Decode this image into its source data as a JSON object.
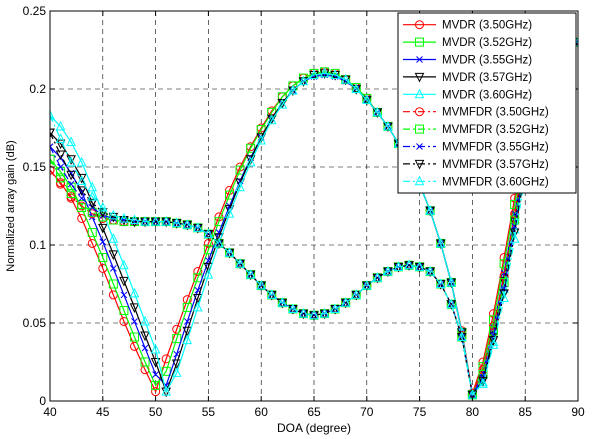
{
  "chart_data": {
    "type": "line",
    "title": "",
    "xlabel": "DOA (degree)",
    "ylabel": "Normalized array gain (dB)",
    "xlim": [
      40,
      90
    ],
    "ylim": [
      0,
      0.25
    ],
    "xticks": [
      40,
      45,
      50,
      55,
      60,
      65,
      70,
      75,
      80,
      85,
      90
    ],
    "yticks": [
      0,
      0.05,
      0.1,
      0.15,
      0.2,
      0.25
    ],
    "xtick_labels": [
      "40",
      "45",
      "50",
      "55",
      "60",
      "65",
      "70",
      "75",
      "80",
      "85",
      "90"
    ],
    "ytick_labels": [
      "0",
      "0.05",
      "0.1",
      "0.15",
      "0.2",
      "0.25"
    ],
    "grid": true,
    "grid_style": "dashed",
    "legend_position": "top-right",
    "series": [
      {
        "name": "MVDR (3.50GHz)",
        "color": "#ff0000",
        "marker": "circle",
        "linestyle": "solid",
        "x": [
          40,
          41,
          42,
          43,
          44,
          45,
          46,
          47,
          48,
          49,
          50,
          51,
          52,
          53,
          54,
          55,
          56,
          57,
          58,
          59,
          60,
          61,
          62,
          63,
          64,
          65,
          66,
          67,
          68,
          69,
          70,
          71,
          72,
          73,
          74,
          75,
          76,
          77,
          78,
          79,
          80,
          81,
          82,
          83,
          84,
          85,
          86
        ],
        "y": [
          0.148,
          0.14,
          0.13,
          0.117,
          0.101,
          0.085,
          0.068,
          0.051,
          0.035,
          0.02,
          0.006,
          0.027,
          0.046,
          0.065,
          0.083,
          0.101,
          0.118,
          0.135,
          0.15,
          0.163,
          0.175,
          0.186,
          0.195,
          0.202,
          0.207,
          0.21,
          0.211,
          0.21,
          0.206,
          0.201,
          0.194,
          0.185,
          0.176,
          0.165,
          0.153,
          0.139,
          0.122,
          0.101,
          0.076,
          0.045,
          0.005,
          0.025,
          0.056,
          0.092,
          0.13,
          0.17,
          0.215
        ]
      },
      {
        "name": "MVDR (3.52GHz)",
        "color": "#00ff00",
        "marker": "square",
        "linestyle": "solid",
        "x": [
          40,
          41,
          42,
          43,
          44,
          45,
          46,
          47,
          48,
          49,
          50,
          51,
          52,
          53,
          54,
          55,
          56,
          57,
          58,
          59,
          60,
          61,
          62,
          63,
          64,
          65,
          66,
          67,
          68,
          69,
          70,
          71,
          72,
          73,
          74,
          75,
          76,
          77,
          78,
          79,
          80,
          81,
          82,
          83,
          84,
          85,
          86
        ],
        "y": [
          0.155,
          0.147,
          0.137,
          0.124,
          0.108,
          0.092,
          0.075,
          0.058,
          0.041,
          0.025,
          0.01,
          0.019,
          0.04,
          0.06,
          0.079,
          0.097,
          0.115,
          0.132,
          0.148,
          0.162,
          0.174,
          0.185,
          0.195,
          0.202,
          0.207,
          0.21,
          0.211,
          0.21,
          0.206,
          0.201,
          0.194,
          0.185,
          0.176,
          0.165,
          0.153,
          0.139,
          0.122,
          0.101,
          0.076,
          0.044,
          0.004,
          0.022,
          0.052,
          0.088,
          0.126,
          0.166,
          0.21
        ]
      },
      {
        "name": "MVDR (3.55GHz)",
        "color": "#0000ff",
        "marker": "x",
        "linestyle": "solid",
        "x": [
          40,
          41,
          42,
          43,
          44,
          45,
          46,
          47,
          48,
          49,
          50,
          51,
          52,
          53,
          54,
          55,
          56,
          57,
          58,
          59,
          60,
          61,
          62,
          63,
          64,
          65,
          66,
          67,
          68,
          69,
          70,
          71,
          72,
          73,
          74,
          75,
          76,
          77,
          78,
          79,
          80,
          81,
          82,
          83,
          84,
          85,
          86
        ],
        "y": [
          0.163,
          0.156,
          0.146,
          0.134,
          0.118,
          0.102,
          0.085,
          0.068,
          0.051,
          0.034,
          0.017,
          0.01,
          0.03,
          0.051,
          0.071,
          0.09,
          0.108,
          0.125,
          0.141,
          0.156,
          0.169,
          0.181,
          0.191,
          0.199,
          0.205,
          0.208,
          0.209,
          0.208,
          0.205,
          0.2,
          0.193,
          0.185,
          0.176,
          0.165,
          0.153,
          0.139,
          0.122,
          0.101,
          0.076,
          0.044,
          0.004,
          0.018,
          0.047,
          0.082,
          0.12,
          0.16,
          0.205
        ]
      },
      {
        "name": "MVDR (3.57GHz)",
        "color": "#000000",
        "marker": "triangle-down",
        "linestyle": "solid",
        "x": [
          40,
          41,
          42,
          43,
          44,
          45,
          46,
          47,
          48,
          49,
          50,
          51,
          52,
          53,
          54,
          55,
          56,
          57,
          58,
          59,
          60,
          61,
          62,
          63,
          64,
          65,
          66,
          67,
          68,
          69,
          70,
          71,
          72,
          73,
          74,
          75,
          76,
          77,
          78,
          79,
          80,
          81,
          82,
          83,
          84,
          85,
          86
        ],
        "y": [
          0.172,
          0.165,
          0.155,
          0.143,
          0.127,
          0.111,
          0.094,
          0.077,
          0.06,
          0.042,
          0.025,
          0.006,
          0.024,
          0.045,
          0.066,
          0.086,
          0.105,
          0.123,
          0.14,
          0.155,
          0.169,
          0.181,
          0.191,
          0.199,
          0.205,
          0.209,
          0.21,
          0.209,
          0.206,
          0.2,
          0.193,
          0.185,
          0.176,
          0.165,
          0.153,
          0.139,
          0.122,
          0.101,
          0.076,
          0.044,
          0.004,
          0.014,
          0.042,
          0.077,
          0.115,
          0.155,
          0.2
        ]
      },
      {
        "name": "MVDR (3.60GHz)",
        "color": "#00ffff",
        "marker": "triangle-up",
        "linestyle": "solid",
        "x": [
          40,
          41,
          42,
          43,
          44,
          45,
          46,
          47,
          48,
          49,
          50,
          51,
          52,
          53,
          54,
          55,
          56,
          57,
          58,
          59,
          60,
          61,
          62,
          63,
          64,
          65,
          66,
          67,
          68,
          69,
          70,
          71,
          72,
          73,
          74,
          75,
          76,
          77,
          78,
          79,
          80,
          81,
          82,
          83,
          84,
          85,
          86
        ],
        "y": [
          0.183,
          0.176,
          0.166,
          0.153,
          0.137,
          0.121,
          0.104,
          0.087,
          0.069,
          0.051,
          0.033,
          0.006,
          0.018,
          0.039,
          0.06,
          0.081,
          0.101,
          0.12,
          0.137,
          0.153,
          0.167,
          0.18,
          0.19,
          0.199,
          0.205,
          0.209,
          0.21,
          0.209,
          0.206,
          0.2,
          0.193,
          0.185,
          0.176,
          0.165,
          0.153,
          0.139,
          0.122,
          0.101,
          0.076,
          0.044,
          0.004,
          0.012,
          0.038,
          0.072,
          0.11,
          0.15,
          0.195
        ]
      },
      {
        "name": "MVMFDR (3.50GHz)",
        "color": "#ff0000",
        "marker": "circle",
        "linestyle": "dashdot",
        "x": [
          40,
          41,
          42,
          43,
          44,
          45,
          46,
          47,
          48,
          49,
          50,
          51,
          52,
          53,
          54,
          55,
          56,
          57,
          58,
          59,
          60,
          61,
          62,
          63,
          64,
          65,
          66,
          67,
          68,
          69,
          70,
          71,
          72,
          73,
          74,
          75,
          76,
          77,
          78,
          79,
          80,
          81,
          82,
          83,
          84,
          85,
          86,
          87,
          88,
          89,
          90
        ],
        "y": [
          0.148,
          0.139,
          0.131,
          0.125,
          0.12,
          0.117,
          0.116,
          0.115,
          0.115,
          0.115,
          0.115,
          0.115,
          0.114,
          0.113,
          0.111,
          0.107,
          0.101,
          0.095,
          0.088,
          0.081,
          0.074,
          0.068,
          0.063,
          0.059,
          0.056,
          0.055,
          0.056,
          0.059,
          0.063,
          0.068,
          0.074,
          0.079,
          0.083,
          0.086,
          0.087,
          0.086,
          0.083,
          0.075,
          0.062,
          0.042,
          0.005,
          0.02,
          0.048,
          0.08,
          0.12,
          0.16,
          0.195,
          0.218,
          0.23,
          0.23,
          0.23
        ]
      },
      {
        "name": "MVMFDR (3.52GHz)",
        "color": "#00ff00",
        "marker": "square",
        "linestyle": "dashdot",
        "x": [
          40,
          41,
          42,
          43,
          44,
          45,
          46,
          47,
          48,
          49,
          50,
          51,
          52,
          53,
          54,
          55,
          56,
          57,
          58,
          59,
          60,
          61,
          62,
          63,
          64,
          65,
          66,
          67,
          68,
          69,
          70,
          71,
          72,
          73,
          74,
          75,
          76,
          77,
          78,
          79,
          80,
          81,
          82,
          83,
          84,
          85,
          86,
          87,
          88,
          89,
          90
        ],
        "y": [
          0.155,
          0.143,
          0.133,
          0.126,
          0.121,
          0.118,
          0.116,
          0.115,
          0.115,
          0.115,
          0.115,
          0.115,
          0.114,
          0.113,
          0.111,
          0.107,
          0.101,
          0.095,
          0.088,
          0.081,
          0.074,
          0.068,
          0.063,
          0.059,
          0.056,
          0.055,
          0.056,
          0.059,
          0.063,
          0.068,
          0.074,
          0.079,
          0.083,
          0.086,
          0.087,
          0.086,
          0.083,
          0.075,
          0.062,
          0.041,
          0.004,
          0.017,
          0.045,
          0.076,
          0.116,
          0.156,
          0.19,
          0.214,
          0.228,
          0.23,
          0.23
        ]
      },
      {
        "name": "MVMFDR (3.55GHz)",
        "color": "#0000ff",
        "marker": "x",
        "linestyle": "dashdot",
        "x": [
          40,
          41,
          42,
          43,
          44,
          45,
          46,
          47,
          48,
          49,
          50,
          51,
          52,
          53,
          54,
          55,
          56,
          57,
          58,
          59,
          60,
          61,
          62,
          63,
          64,
          65,
          66,
          67,
          68,
          69,
          70,
          71,
          72,
          73,
          74,
          75,
          76,
          77,
          78,
          79,
          80,
          81,
          82,
          83,
          84,
          85,
          86,
          87,
          88,
          89,
          90
        ],
        "y": [
          0.163,
          0.15,
          0.139,
          0.13,
          0.124,
          0.119,
          0.117,
          0.116,
          0.115,
          0.115,
          0.115,
          0.115,
          0.114,
          0.113,
          0.111,
          0.107,
          0.101,
          0.095,
          0.088,
          0.081,
          0.074,
          0.068,
          0.063,
          0.059,
          0.056,
          0.055,
          0.056,
          0.059,
          0.063,
          0.068,
          0.074,
          0.079,
          0.083,
          0.086,
          0.087,
          0.086,
          0.083,
          0.075,
          0.062,
          0.041,
          0.004,
          0.015,
          0.042,
          0.072,
          0.112,
          0.152,
          0.186,
          0.21,
          0.226,
          0.23,
          0.23
        ]
      },
      {
        "name": "MVMFDR (3.57GHz)",
        "color": "#000000",
        "marker": "triangle-down",
        "linestyle": "dashdot",
        "x": [
          40,
          41,
          42,
          43,
          44,
          45,
          46,
          47,
          48,
          49,
          50,
          51,
          52,
          53,
          54,
          55,
          56,
          57,
          58,
          59,
          60,
          61,
          62,
          63,
          64,
          65,
          66,
          67,
          68,
          69,
          70,
          71,
          72,
          73,
          74,
          75,
          76,
          77,
          78,
          79,
          80,
          81,
          82,
          83,
          84,
          85,
          86,
          87,
          88,
          89,
          90
        ],
        "y": [
          0.172,
          0.158,
          0.145,
          0.135,
          0.127,
          0.121,
          0.118,
          0.116,
          0.115,
          0.115,
          0.115,
          0.115,
          0.114,
          0.113,
          0.111,
          0.107,
          0.101,
          0.095,
          0.088,
          0.081,
          0.074,
          0.068,
          0.063,
          0.059,
          0.056,
          0.055,
          0.056,
          0.059,
          0.063,
          0.068,
          0.074,
          0.079,
          0.083,
          0.086,
          0.087,
          0.086,
          0.083,
          0.075,
          0.062,
          0.041,
          0.004,
          0.013,
          0.039,
          0.069,
          0.108,
          0.148,
          0.182,
          0.206,
          0.224,
          0.23,
          0.23
        ]
      },
      {
        "name": "MVMFDR (3.60GHz)",
        "color": "#00ffff",
        "marker": "triangle-up",
        "linestyle": "dashdot",
        "x": [
          40,
          41,
          42,
          43,
          44,
          45,
          46,
          47,
          48,
          49,
          50,
          51,
          52,
          53,
          54,
          55,
          56,
          57,
          58,
          59,
          60,
          61,
          62,
          63,
          64,
          65,
          66,
          67,
          68,
          69,
          70,
          71,
          72,
          73,
          74,
          75,
          76,
          77,
          78,
          79,
          80,
          81,
          82,
          83,
          84,
          85,
          86,
          87,
          88,
          89,
          90
        ],
        "y": [
          0.183,
          0.168,
          0.153,
          0.141,
          0.131,
          0.124,
          0.119,
          0.117,
          0.116,
          0.115,
          0.115,
          0.115,
          0.114,
          0.113,
          0.111,
          0.107,
          0.101,
          0.095,
          0.088,
          0.081,
          0.074,
          0.068,
          0.063,
          0.059,
          0.056,
          0.055,
          0.056,
          0.059,
          0.063,
          0.068,
          0.074,
          0.079,
          0.083,
          0.086,
          0.087,
          0.086,
          0.083,
          0.075,
          0.062,
          0.041,
          0.004,
          0.011,
          0.036,
          0.066,
          0.104,
          0.144,
          0.178,
          0.202,
          0.222,
          0.23,
          0.23
        ]
      }
    ]
  }
}
